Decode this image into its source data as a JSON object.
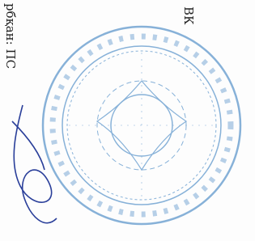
{
  "document": {
    "top_text": "ВК",
    "side_text": "рбқан: ПС"
  }
}
